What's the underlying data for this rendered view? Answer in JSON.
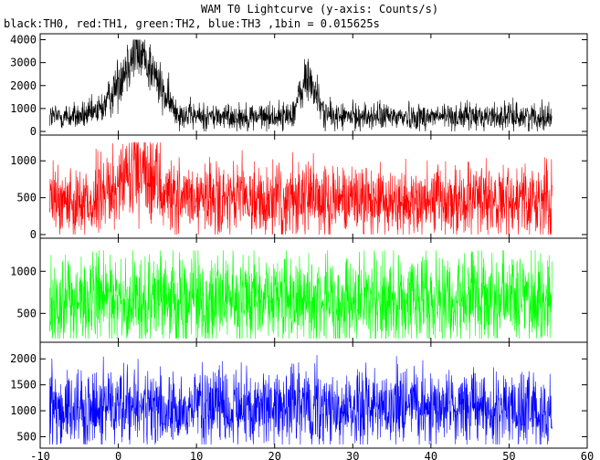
{
  "title": "WAM T0 Lightcurve (y-axis: Counts/s)",
  "subtitle": "black:TH0, red:TH1, green:TH2, blue:TH3 ,1bin = 0.015625s",
  "chart_data": {
    "type": "line",
    "x_ticks": [
      -10,
      0,
      10,
      20,
      30,
      40,
      50,
      60
    ],
    "xlim": [
      -10,
      60
    ],
    "data_range": [
      -8.8,
      55.5
    ],
    "grid": false,
    "panels": [
      {
        "channel": "TH0",
        "color": "#000000",
        "ylim": [
          0,
          4100
        ],
        "y_ticks": [
          0,
          1000,
          2000,
          3000,
          4000
        ],
        "baseline": 650,
        "noise": 300,
        "peaks": [
          {
            "center": 2.5,
            "amplitude": 2800,
            "width": 2.3
          },
          {
            "center": 24.3,
            "amplitude": 1600,
            "width": 1.0
          }
        ],
        "approx_peak_max": 4000
      },
      {
        "channel": "TH1",
        "color": "#ff0000",
        "ylim": [
          0,
          1300
        ],
        "y_ticks": [
          0,
          500,
          1000
        ],
        "baseline": 450,
        "noise": 250,
        "peaks": [
          {
            "center": 2.5,
            "amplitude": 350,
            "width": 2.5
          },
          {
            "center": 24.5,
            "amplitude": 100,
            "width": 1.2
          }
        ],
        "approx_peak_max": 1250
      },
      {
        "channel": "TH2",
        "color": "#00ff00",
        "ylim": [
          200,
          1350
        ],
        "y_ticks": [
          500,
          1000
        ],
        "baseline": 650,
        "noise": 280,
        "peaks": [],
        "approx_peak_max": 1250
      },
      {
        "channel": "TH3",
        "color": "#0000ff",
        "ylim": [
          350,
          2250
        ],
        "y_ticks": [
          500,
          1000,
          1500,
          2000
        ],
        "baseline": 1050,
        "noise": 380,
        "peaks": [],
        "approx_peak_max": 2200
      }
    ]
  }
}
